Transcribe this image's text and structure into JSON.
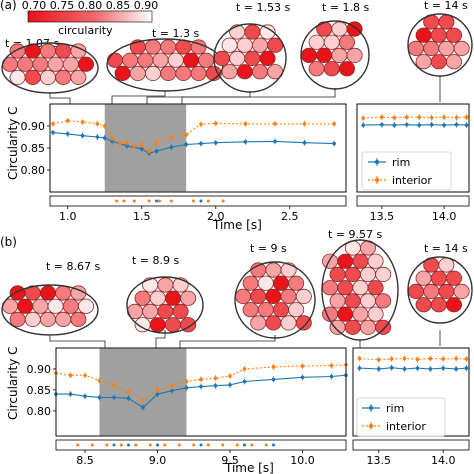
{
  "colorbar": {
    "label": "circularity",
    "ticks": [
      "0.70",
      "0.75",
      "0.80",
      "0.85",
      "0.90"
    ],
    "color_low": "#e8141a",
    "color_high": "#ffffff"
  },
  "colors": {
    "rim": "#1f77b4",
    "interior": "#ff7f0e",
    "shade": "#a0a0a0"
  },
  "panels": [
    {
      "label": "(a)",
      "snapshots": [
        "t = 1.07 s",
        "t = 1.3 s",
        "t = 1.53 s",
        "t = 1.8 s",
        "t = 14 s"
      ],
      "ylabel": "Circularity C",
      "xlabel": "Time [s]",
      "legend": [
        "rim",
        "interior"
      ]
    },
    {
      "label": "(b)",
      "snapshots": [
        "t = 8.67 s",
        "t = 8.9 s",
        "t = 9 s",
        "t = 9.57 s",
        "t = 14 s"
      ],
      "ylabel": "Circularity C",
      "xlabel": "Time [s]",
      "legend": [
        "rim",
        "interior"
      ]
    }
  ],
  "chart_data": [
    {
      "type": "line",
      "xlabel": "Time [s]",
      "ylabel": "Circularity C",
      "ylim": [
        0.75,
        0.95
      ],
      "yticks": [
        0.8,
        0.85,
        0.9
      ],
      "main": {
        "xlim": [
          0.88,
          2.88
        ],
        "xticks": [
          1.0,
          1.5,
          2.0,
          2.5
        ],
        "xtick_labels": [
          "1.0",
          "1.5",
          "2.0",
          "2.5"
        ],
        "shaded": [
          1.25,
          1.8
        ],
        "interior": [
          [
            0.9,
            0.905
          ],
          [
            1.0,
            0.912
          ],
          [
            1.1,
            0.909
          ],
          [
            1.2,
            0.905
          ],
          [
            1.25,
            0.9
          ],
          [
            1.3,
            0.872
          ],
          [
            1.35,
            0.86
          ],
          [
            1.4,
            0.862
          ],
          [
            1.45,
            0.855
          ],
          [
            1.5,
            0.858
          ],
          [
            1.55,
            0.843
          ],
          [
            1.6,
            0.862
          ],
          [
            1.7,
            0.875
          ],
          [
            1.8,
            0.88
          ],
          [
            1.9,
            0.904
          ],
          [
            2.0,
            0.906
          ],
          [
            2.2,
            0.905
          ],
          [
            2.4,
            0.905
          ],
          [
            2.6,
            0.905
          ],
          [
            2.8,
            0.905
          ]
        ],
        "rim": [
          [
            0.9,
            0.885
          ],
          [
            1.0,
            0.882
          ],
          [
            1.1,
            0.878
          ],
          [
            1.2,
            0.875
          ],
          [
            1.25,
            0.873
          ],
          [
            1.3,
            0.865
          ],
          [
            1.4,
            0.855
          ],
          [
            1.5,
            0.848
          ],
          [
            1.55,
            0.838
          ],
          [
            1.6,
            0.843
          ],
          [
            1.7,
            0.852
          ],
          [
            1.8,
            0.858
          ],
          [
            1.9,
            0.86
          ],
          [
            2.0,
            0.862
          ],
          [
            2.2,
            0.864
          ],
          [
            2.4,
            0.865
          ],
          [
            2.6,
            0.862
          ],
          [
            2.8,
            0.86
          ]
        ]
      },
      "tail": {
        "xlim": [
          13.3,
          14.2
        ],
        "xticks": [
          13.5,
          14.0
        ],
        "xtick_labels": [
          "13.5",
          "14.0"
        ],
        "interior": [
          [
            13.35,
            0.918
          ],
          [
            13.5,
            0.92
          ],
          [
            13.6,
            0.919
          ],
          [
            13.7,
            0.92
          ],
          [
            13.8,
            0.92
          ],
          [
            13.9,
            0.919
          ],
          [
            14.0,
            0.92
          ],
          [
            14.1,
            0.919
          ],
          [
            14.18,
            0.92
          ]
        ],
        "rim": [
          [
            13.35,
            0.902
          ],
          [
            13.5,
            0.903
          ],
          [
            13.6,
            0.902
          ],
          [
            13.7,
            0.903
          ],
          [
            13.8,
            0.902
          ],
          [
            13.9,
            0.903
          ],
          [
            14.0,
            0.902
          ],
          [
            14.1,
            0.903
          ],
          [
            14.18,
            0.902
          ]
        ]
      },
      "strip": {
        "orange": [
          1.33,
          1.38,
          1.45,
          1.55,
          1.62,
          1.7,
          1.85,
          1.95,
          2.05
        ],
        "blue": [
          1.6,
          1.9
        ]
      }
    },
    {
      "type": "line",
      "xlabel": "Time [s]",
      "ylabel": "Circularity C",
      "ylim": [
        0.74,
        0.95
      ],
      "yticks": [
        0.8,
        0.85,
        0.9
      ],
      "main": {
        "xlim": [
          8.3,
          10.3
        ],
        "xticks": [
          8.5,
          9.0,
          9.5,
          10.0
        ],
        "xtick_labels": [
          "8.5",
          "9.0",
          "9.5",
          "10.0"
        ],
        "shaded": [
          8.6,
          9.2
        ],
        "interior": [
          [
            8.3,
            0.89
          ],
          [
            8.4,
            0.885
          ],
          [
            8.5,
            0.885
          ],
          [
            8.6,
            0.872
          ],
          [
            8.7,
            0.862
          ],
          [
            8.8,
            0.845
          ],
          [
            8.9,
            0.825
          ],
          [
            9.0,
            0.85
          ],
          [
            9.1,
            0.86
          ],
          [
            9.2,
            0.87
          ],
          [
            9.3,
            0.875
          ],
          [
            9.4,
            0.878
          ],
          [
            9.5,
            0.883
          ],
          [
            9.6,
            0.9
          ],
          [
            9.8,
            0.905
          ],
          [
            10.0,
            0.907
          ],
          [
            10.2,
            0.908
          ],
          [
            10.3,
            0.91
          ]
        ],
        "rim": [
          [
            8.3,
            0.84
          ],
          [
            8.4,
            0.84
          ],
          [
            8.5,
            0.835
          ],
          [
            8.6,
            0.832
          ],
          [
            8.7,
            0.832
          ],
          [
            8.8,
            0.83
          ],
          [
            8.9,
            0.808
          ],
          [
            9.0,
            0.84
          ],
          [
            9.1,
            0.848
          ],
          [
            9.2,
            0.855
          ],
          [
            9.3,
            0.858
          ],
          [
            9.4,
            0.86
          ],
          [
            9.5,
            0.862
          ],
          [
            9.6,
            0.87
          ],
          [
            9.8,
            0.875
          ],
          [
            10.0,
            0.88
          ],
          [
            10.2,
            0.882
          ],
          [
            10.3,
            0.885
          ]
        ]
      },
      "tail": {
        "xlim": [
          13.3,
          14.2
        ],
        "xticks": [
          13.5,
          14.0
        ],
        "xtick_labels": [
          "13.5",
          "14.0"
        ],
        "interior": [
          [
            13.35,
            0.925
          ],
          [
            13.5,
            0.922
          ],
          [
            13.6,
            0.924
          ],
          [
            13.7,
            0.925
          ],
          [
            13.8,
            0.923
          ],
          [
            13.9,
            0.925
          ],
          [
            14.0,
            0.924
          ],
          [
            14.1,
            0.925
          ],
          [
            14.18,
            0.924
          ]
        ],
        "rim": [
          [
            13.35,
            0.902
          ],
          [
            13.5,
            0.9
          ],
          [
            13.6,
            0.903
          ],
          [
            13.7,
            0.9
          ],
          [
            13.8,
            0.902
          ],
          [
            13.9,
            0.9
          ],
          [
            14.0,
            0.902
          ],
          [
            14.1,
            0.9
          ],
          [
            14.18,
            0.902
          ]
        ]
      },
      "strip": {
        "orange": [
          8.45,
          8.55,
          8.65,
          8.75,
          8.85,
          8.95,
          9.05,
          9.15,
          9.25,
          9.35,
          9.45,
          9.55,
          9.65,
          9.75
        ],
        "blue": [
          8.7,
          8.8,
          9.0,
          9.3,
          9.6,
          9.8
        ]
      }
    }
  ]
}
